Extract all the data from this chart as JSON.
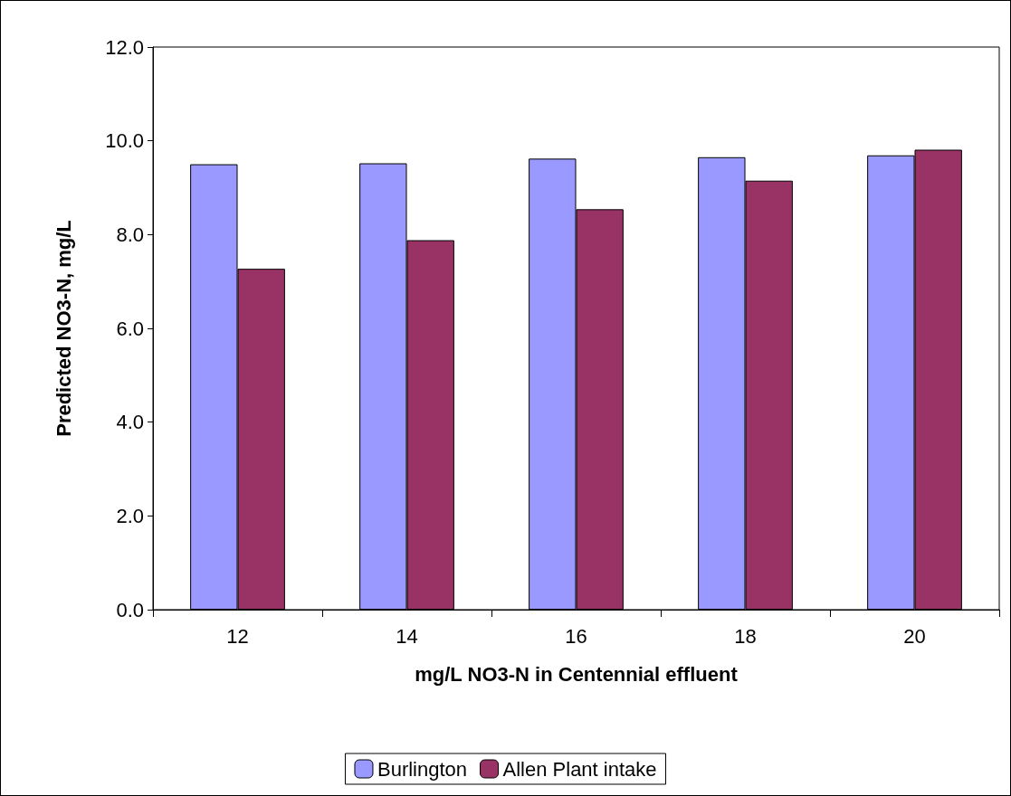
{
  "chart_data": {
    "type": "bar",
    "xlabel": "mg/L NO3-N in Centennial effluent",
    "ylabel": "Predicted NO3-N, mg/L",
    "categories": [
      "12",
      "14",
      "16",
      "18",
      "20"
    ],
    "series": [
      {
        "name": "Burlington",
        "color": "#9999ff",
        "values": [
          9.5,
          9.52,
          9.62,
          9.65,
          9.69
        ]
      },
      {
        "name": "Allen Plant intake",
        "color": "#993366",
        "values": [
          7.27,
          7.88,
          8.54,
          9.15,
          9.81
        ]
      }
    ],
    "ylim": [
      0,
      12
    ],
    "yticks": [
      {
        "value": 0,
        "label": "0.0"
      },
      {
        "value": 2,
        "label": "2.0"
      },
      {
        "value": 4,
        "label": "4.0"
      },
      {
        "value": 6,
        "label": "6.0"
      },
      {
        "value": 8,
        "label": "8.0"
      },
      {
        "value": 10,
        "label": "10.0"
      },
      {
        "value": 12,
        "label": "12.0"
      }
    ],
    "grid": false,
    "legend": "bottom"
  }
}
